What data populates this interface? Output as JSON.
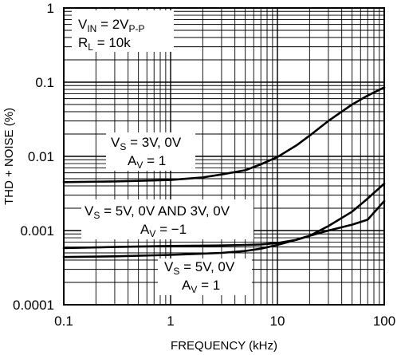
{
  "chart_data": {
    "type": "line",
    "xscale": "log",
    "yscale": "log",
    "xlim": [
      0.1,
      100
    ],
    "ylim": [
      0.0001,
      1
    ],
    "xlabel": "FREQUENCY (kHz)",
    "ylabel": "THD + NOISE (%)",
    "x_tick_labels": [
      "0.1",
      "1",
      "10",
      "100"
    ],
    "y_tick_labels": [
      "0.0001",
      "0.001",
      "0.01",
      "0.1",
      "1"
    ],
    "grid": true,
    "series": [
      {
        "x": [
          0.1,
          0.3,
          1,
          2,
          3,
          5,
          7,
          10,
          15,
          20,
          30,
          50,
          70,
          100
        ],
        "y": [
          0.0045,
          0.0046,
          0.0048,
          0.0052,
          0.0057,
          0.0065,
          0.0078,
          0.0098,
          0.014,
          0.019,
          0.03,
          0.05,
          0.066,
          0.085
        ]
      },
      {
        "x": [
          0.1,
          0.3,
          1,
          3,
          5,
          7,
          10,
          15,
          20,
          30,
          50,
          70,
          100
        ],
        "y": [
          0.00058,
          0.0006,
          0.00062,
          0.00063,
          0.00064,
          0.00065,
          0.00068,
          0.00075,
          0.00085,
          0.00115,
          0.0018,
          0.0027,
          0.0043
        ]
      },
      {
        "x": [
          0.1,
          0.3,
          1,
          3,
          5,
          7,
          10,
          15,
          20,
          30,
          50,
          70,
          100
        ],
        "y": [
          0.00044,
          0.00045,
          0.00047,
          0.0005,
          0.00053,
          0.00057,
          0.00064,
          0.00075,
          0.00085,
          0.001,
          0.0012,
          0.0014,
          0.0025
        ]
      }
    ],
    "annotations": {
      "conditions": {
        "vin": "V",
        "vin_sub": "IN",
        "vin_val": " = 2V",
        "vin_val_sub": "P-P",
        "rl": "R",
        "rl_sub": "L",
        "rl_val": " = 10k"
      },
      "curve1": {
        "vs": "V",
        "vs_sub": "S",
        "vs_val": " = 3V, 0V",
        "av": "A",
        "av_sub": "V",
        "av_val": " = 1"
      },
      "curve2": {
        "vs": "V",
        "vs_sub": "S",
        "vs_val": " = 5V, 0V AND 3V, 0V",
        "av": "A",
        "av_sub": "V",
        "av_val": " = −1"
      },
      "curve3": {
        "vs": "V",
        "vs_sub": "S",
        "vs_val": " = 5V, 0V",
        "av": "A",
        "av_sub": "V",
        "av_val": " = 1"
      }
    }
  }
}
